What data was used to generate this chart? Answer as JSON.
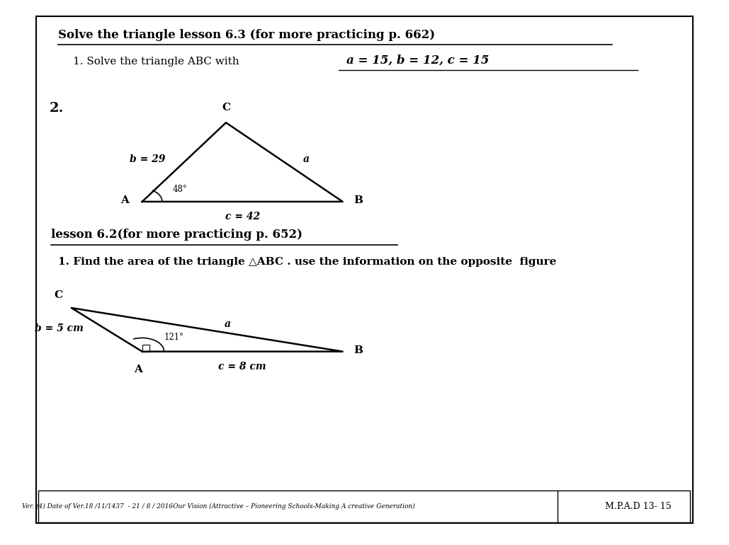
{
  "title": "Solve the triangle lesson 6.3 (for more practicing p. 662)",
  "problem1_text": "1. Solve the triangle ABC with",
  "problem1_formula": "a = 15, b = 12, c = 15",
  "problem2_label": "2.",
  "tri1_label_A": "A",
  "tri1_label_B": "B",
  "tri1_label_C": "C",
  "tri1_b": "b = 29",
  "tri1_a": "a",
  "tri1_c": "c = 42",
  "tri1_angle": "48°",
  "lesson2_title": "lesson 6.2(for more practicing p. 652)",
  "find_area_text": "1. Find the area of the triangle △ABC . use the information on the opposite  figure",
  "tri2_label_A": "A",
  "tri2_label_B": "B",
  "tri2_label_C": "C",
  "tri2_b": "b = 5 cm",
  "tri2_a": "a",
  "tri2_c": "c = 8 cm",
  "tri2_angle": "121°",
  "footer_left": "Ver. (4) Date of Ver.18 /11/1437  - 21 / 8 / 2016Our Vision (Attractive – Pioneering Schools-Making A creative Generation)",
  "footer_right": "M.P.A.D 13- 15",
  "bg_color": "#ffffff",
  "text_color": "#000000"
}
